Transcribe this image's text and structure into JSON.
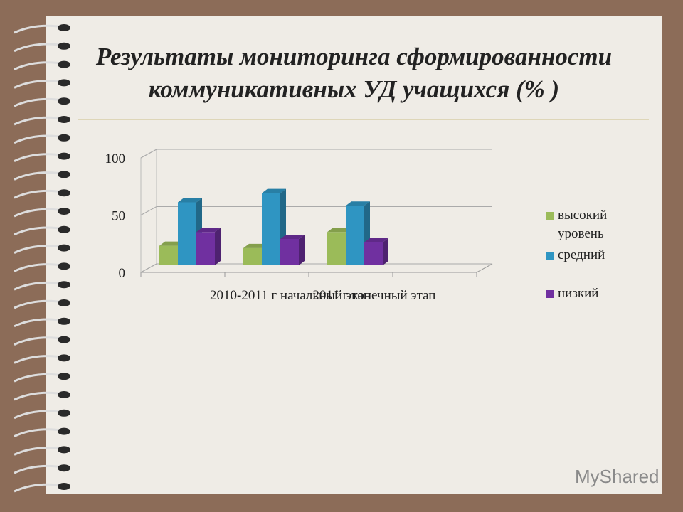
{
  "title_lines": [
    "Результаты мониторинга сформированности",
    "коммуникативных УД учащихся (% )"
  ],
  "watermark": "MyShared",
  "chart_data": {
    "type": "bar3d",
    "categories": [
      "2010-2011 г начальный этап",
      "2011 г конечный этап",
      null,
      null
    ],
    "series": [
      {
        "name": "высокий уровень",
        "color": "#9bbb59",
        "values": [
          17,
          15,
          29,
          null
        ]
      },
      {
        "name": "средний",
        "color": "#2f95c2",
        "values": [
          55,
          63,
          52,
          null
        ]
      },
      {
        "name": "низкий",
        "color": "#7030a0",
        "values": [
          29,
          23,
          20,
          null
        ]
      }
    ],
    "ylim": [
      0,
      100
    ],
    "yticks": [
      0,
      50,
      100
    ],
    "grid": true,
    "legend": "right"
  }
}
